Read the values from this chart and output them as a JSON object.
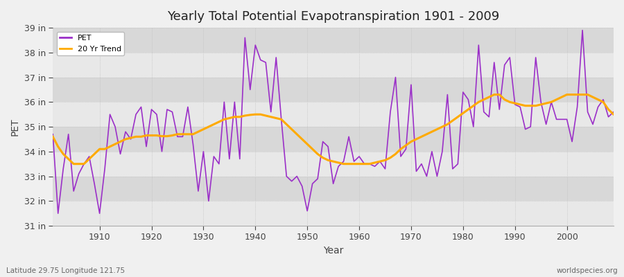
{
  "title": "Yearly Total Potential Evapotranspiration 1901 - 2009",
  "xlabel": "Year",
  "ylabel": "PET",
  "lat_lon_text": "Latitude 29.75 Longitude 121.75",
  "watermark": "worldspecies.org",
  "pet_color": "#9b30c8",
  "trend_color": "#ffaa00",
  "bg_color": "#f0f0f0",
  "band_light": "#e8e8e8",
  "band_dark": "#d8d8d8",
  "ytick_labels": [
    "31 in",
    "32 in",
    "33 in",
    "34 in",
    "35 in",
    "36 in",
    "37 in",
    "38 in",
    "39 in"
  ],
  "ytick_values": [
    31,
    32,
    33,
    34,
    35,
    36,
    37,
    38,
    39
  ],
  "years": [
    1901,
    1902,
    1903,
    1904,
    1905,
    1906,
    1907,
    1908,
    1909,
    1910,
    1911,
    1912,
    1913,
    1914,
    1915,
    1916,
    1917,
    1918,
    1919,
    1920,
    1921,
    1922,
    1923,
    1924,
    1925,
    1926,
    1927,
    1928,
    1929,
    1930,
    1931,
    1932,
    1933,
    1934,
    1935,
    1936,
    1937,
    1938,
    1939,
    1940,
    1941,
    1942,
    1943,
    1944,
    1945,
    1946,
    1947,
    1948,
    1949,
    1950,
    1951,
    1952,
    1953,
    1954,
    1955,
    1956,
    1957,
    1958,
    1959,
    1960,
    1961,
    1962,
    1963,
    1964,
    1965,
    1966,
    1967,
    1968,
    1969,
    1970,
    1971,
    1972,
    1973,
    1974,
    1975,
    1976,
    1977,
    1978,
    1979,
    1980,
    1981,
    1982,
    1983,
    1984,
    1985,
    1986,
    1987,
    1988,
    1989,
    1990,
    1991,
    1992,
    1993,
    1994,
    1995,
    1996,
    1997,
    1998,
    1999,
    2000,
    2001,
    2002,
    2003,
    2004,
    2005,
    2006,
    2007,
    2008,
    2009
  ],
  "pet_values": [
    34.7,
    31.5,
    33.3,
    34.7,
    32.4,
    33.1,
    33.5,
    33.8,
    32.7,
    31.5,
    33.3,
    35.5,
    35.0,
    33.9,
    34.8,
    34.5,
    35.5,
    35.8,
    34.2,
    35.7,
    35.5,
    34.0,
    35.7,
    35.6,
    34.6,
    34.6,
    35.8,
    34.3,
    32.4,
    34.0,
    32.0,
    33.8,
    33.5,
    36.0,
    33.7,
    36.0,
    33.7,
    38.6,
    36.5,
    38.3,
    37.7,
    37.6,
    35.6,
    37.8,
    35.3,
    33.0,
    32.8,
    33.0,
    32.6,
    31.6,
    32.7,
    32.9,
    34.4,
    34.2,
    32.7,
    33.4,
    33.6,
    34.6,
    33.6,
    33.8,
    33.5,
    33.5,
    33.4,
    33.6,
    33.3,
    35.6,
    37.0,
    33.8,
    34.1,
    36.7,
    33.2,
    33.5,
    33.0,
    34.0,
    33.0,
    34.0,
    36.3,
    33.3,
    33.5,
    36.4,
    36.1,
    35.0,
    38.3,
    35.6,
    35.4,
    37.6,
    35.7,
    37.5,
    37.8,
    35.9,
    35.8,
    34.9,
    35.0,
    37.8,
    36.0,
    35.1,
    36.0,
    35.3,
    35.3,
    35.3,
    34.4,
    35.8,
    38.9,
    35.6,
    35.1,
    35.8,
    36.1,
    35.4,
    35.6
  ],
  "trend_values": [
    34.6,
    34.2,
    33.9,
    33.7,
    33.5,
    33.5,
    33.5,
    33.7,
    33.9,
    34.1,
    34.1,
    34.2,
    34.3,
    34.4,
    34.5,
    34.55,
    34.6,
    34.6,
    34.65,
    34.65,
    34.65,
    34.62,
    34.62,
    34.65,
    34.7,
    34.7,
    34.7,
    34.7,
    34.8,
    34.9,
    35.0,
    35.1,
    35.2,
    35.3,
    35.35,
    35.4,
    35.4,
    35.45,
    35.48,
    35.5,
    35.5,
    35.45,
    35.4,
    35.35,
    35.3,
    35.1,
    34.9,
    34.7,
    34.5,
    34.3,
    34.1,
    33.9,
    33.75,
    33.65,
    33.6,
    33.55,
    33.5,
    33.5,
    33.5,
    33.5,
    33.5,
    33.5,
    33.55,
    33.6,
    33.65,
    33.75,
    33.9,
    34.1,
    34.25,
    34.4,
    34.5,
    34.6,
    34.7,
    34.8,
    34.9,
    35.0,
    35.1,
    35.25,
    35.4,
    35.55,
    35.7,
    35.85,
    36.0,
    36.1,
    36.2,
    36.3,
    36.3,
    36.1,
    36.0,
    35.95,
    35.9,
    35.85,
    35.85,
    35.85,
    35.9,
    35.95,
    36.0,
    36.1,
    36.2,
    36.3,
    36.3,
    36.3,
    36.3,
    36.3,
    36.2,
    36.1,
    36.0,
    35.7,
    35.5
  ]
}
